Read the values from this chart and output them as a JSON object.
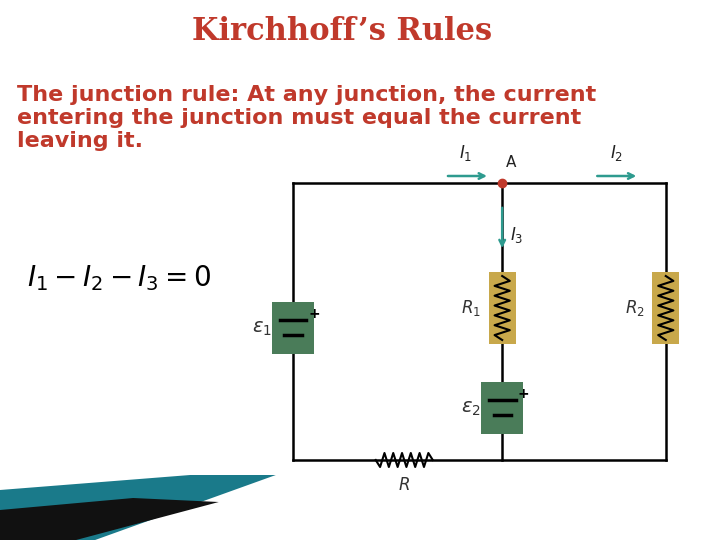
{
  "title": "Kirchhoff’s Rules",
  "title_color": "#C0392B",
  "title_fontsize": 22,
  "body_text": "The junction rule: At any junction, the current\nentering the junction must equal the current\nleaving it.",
  "body_text_color": "#C0392B",
  "body_fontsize": 16,
  "formula": "$I_1 - I_2 - I_3 = 0$",
  "formula_color": "#000000",
  "formula_fontsize": 20,
  "bg_color": "#FFFFFF",
  "circuit_line_color": "#000000",
  "arrow_color": "#2E9B8F",
  "junction_color": "#C0392B",
  "battery_color": "#4A7C59",
  "resistor_color": "#C8A84B",
  "bottom_teal_color": "#1A7A8A",
  "bottom_black_color": "#111111"
}
